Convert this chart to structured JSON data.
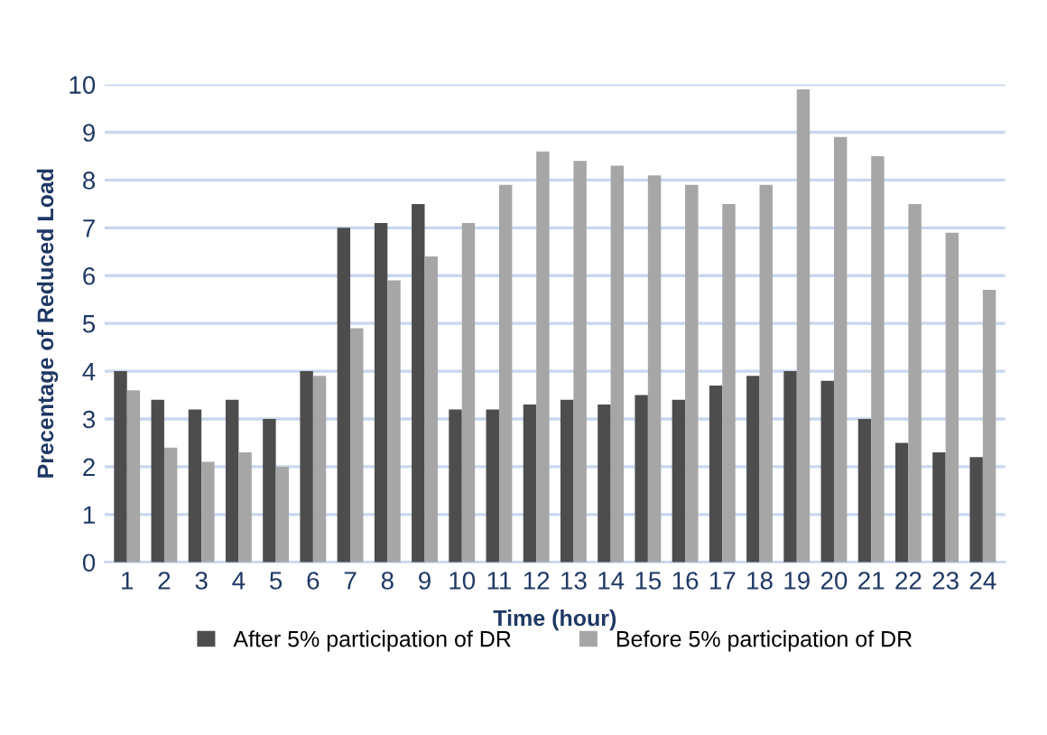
{
  "chart_data": {
    "type": "bar",
    "xlabel": "Time (hour)",
    "ylabel": "Precentage of Reduced Load",
    "categories": [
      "1",
      "2",
      "3",
      "4",
      "5",
      "6",
      "7",
      "8",
      "9",
      "10",
      "11",
      "12",
      "13",
      "14",
      "15",
      "16",
      "17",
      "18",
      "19",
      "20",
      "21",
      "22",
      "23",
      "24"
    ],
    "series": [
      {
        "name": "After 5% participation of DR",
        "color": "#4d4d4d",
        "values": [
          4.0,
          3.4,
          3.2,
          3.4,
          3.0,
          4.0,
          7.0,
          7.1,
          7.5,
          3.2,
          3.2,
          3.3,
          3.4,
          3.3,
          3.5,
          3.4,
          3.7,
          3.9,
          4.0,
          3.8,
          3.0,
          2.5,
          2.3,
          2.2
        ]
      },
      {
        "name": "Before 5% participation of DR",
        "color": "#a6a6a6",
        "values": [
          3.6,
          2.4,
          2.1,
          2.3,
          2.0,
          3.9,
          4.9,
          5.9,
          6.4,
          7.1,
          7.9,
          8.6,
          8.4,
          8.3,
          8.1,
          7.9,
          7.5,
          7.9,
          9.9,
          8.9,
          8.5,
          7.5,
          6.9,
          5.7
        ]
      }
    ],
    "ylim": [
      0,
      10
    ],
    "yticks": [
      0,
      1,
      2,
      3,
      4,
      5,
      6,
      7,
      8,
      9,
      10
    ],
    "grid": "y",
    "legend": "bottom"
  }
}
